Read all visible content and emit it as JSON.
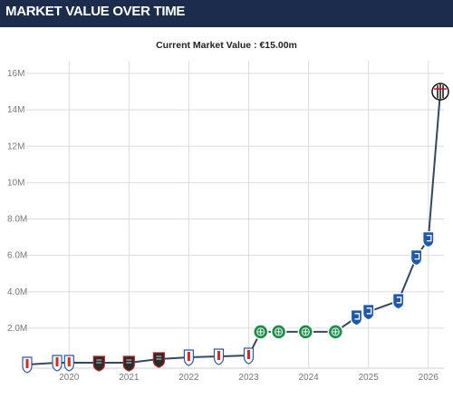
{
  "header": {
    "title": "MARKET VALUE OVER TIME"
  },
  "subtitle": "Current Market Value : €15.00m",
  "colors": {
    "header_bg": "#1c2c4c",
    "line": "#34495e",
    "grid": "#dddddd",
    "axis_text": "#777777"
  },
  "chart_data": {
    "type": "line",
    "title": "MARKET VALUE OVER TIME",
    "subtitle": "Current Market Value : €15.00m",
    "xlabel": "",
    "ylabel": "",
    "grid": true,
    "legend": "none",
    "xlim": [
      2019.3,
      2026.2
    ],
    "ylim": [
      0,
      16.5
    ],
    "y_ticks": [
      {
        "value": 2,
        "label": "2.0M"
      },
      {
        "value": 4,
        "label": "4.0M"
      },
      {
        "value": 6,
        "label": "6.0M"
      },
      {
        "value": 8,
        "label": "8.0M"
      },
      {
        "value": 10,
        "label": "10M"
      },
      {
        "value": 12,
        "label": "12M"
      },
      {
        "value": 14,
        "label": "14M"
      },
      {
        "value": 16,
        "label": "16M"
      }
    ],
    "x_ticks": [
      {
        "value": 2020,
        "label": "2020"
      },
      {
        "value": 2021,
        "label": "2021"
      },
      {
        "value": 2022,
        "label": "2022"
      },
      {
        "value": 2023,
        "label": "2023"
      },
      {
        "value": 2024,
        "label": "2024"
      },
      {
        "value": 2025,
        "label": "2025"
      },
      {
        "value": 2026,
        "label": "2026"
      }
    ],
    "series": [
      {
        "points": [
          {
            "x": 2019.3,
            "y": 0.0,
            "club": "french-crest"
          },
          {
            "x": 2019.8,
            "y": 0.1,
            "club": "french-crest"
          },
          {
            "x": 2020.0,
            "y": 0.1,
            "club": "french-crest"
          },
          {
            "x": 2020.5,
            "y": 0.1,
            "club": "dark-crest"
          },
          {
            "x": 2021.0,
            "y": 0.1,
            "club": "dark-crest"
          },
          {
            "x": 2021.5,
            "y": 0.3,
            "club": "dark-crest"
          },
          {
            "x": 2022.0,
            "y": 0.4,
            "club": "french-crest"
          },
          {
            "x": 2022.5,
            "y": 0.45,
            "club": "french-crest"
          },
          {
            "x": 2023.0,
            "y": 0.5,
            "club": "french-crest"
          },
          {
            "x": 2023.2,
            "y": 1.8,
            "club": "celtic-crest"
          },
          {
            "x": 2023.5,
            "y": 1.8,
            "club": "celtic-crest"
          },
          {
            "x": 2023.95,
            "y": 1.8,
            "club": "celtic-crest"
          },
          {
            "x": 2024.45,
            "y": 1.8,
            "club": "celtic-crest"
          },
          {
            "x": 2024.8,
            "y": 2.6,
            "club": "blue-crest"
          },
          {
            "x": 2025.0,
            "y": 2.9,
            "club": "blue-crest"
          },
          {
            "x": 2025.5,
            "y": 3.5,
            "club": "blue-crest"
          },
          {
            "x": 2025.8,
            "y": 5.9,
            "club": "blue-crest"
          },
          {
            "x": 2026.0,
            "y": 6.9,
            "club": "blue-crest"
          },
          {
            "x": 2026.2,
            "y": 15.0,
            "club": "bw-crest"
          }
        ]
      }
    ]
  }
}
